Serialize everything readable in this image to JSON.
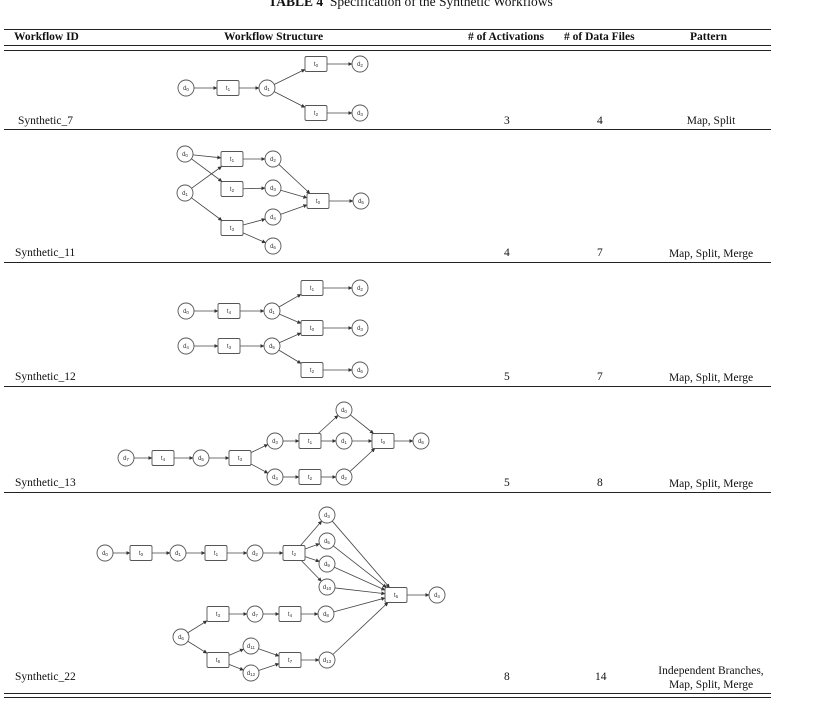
{
  "title": {
    "label": "TABLE 4",
    "text": "Specification of the Synthetic Workflows"
  },
  "headers": {
    "id": "Workflow ID",
    "structure": "Workflow Structure",
    "activations": "# of Activations",
    "files": "# of Data Files",
    "pattern": "Pattern"
  },
  "rows": [
    {
      "id": "Synthetic_7",
      "activations": "3",
      "files": "4",
      "pattern_lines": [
        "Map, Split"
      ]
    },
    {
      "id": "Synthetic_11",
      "activations": "4",
      "files": "7",
      "pattern_lines": [
        "Map, Split, Merge"
      ]
    },
    {
      "id": "Synthetic_12",
      "activations": "5",
      "files": "7",
      "pattern_lines": [
        "Map, Split, Merge"
      ]
    },
    {
      "id": "Synthetic_13",
      "activations": "5",
      "files": "8",
      "pattern_lines": [
        "Map, Split, Merge"
      ]
    },
    {
      "id": "Synthetic_22",
      "activations": "8",
      "files": "14",
      "pattern_lines": [
        "Independent Branches,",
        "Map, Split, Merge"
      ]
    }
  ],
  "diagrams": [
    {
      "nodes": [
        {
          "id": "a",
          "label": "d0",
          "kind": "circle"
        },
        {
          "id": "b",
          "label": "t1",
          "kind": "rect"
        },
        {
          "id": "c",
          "label": "d1",
          "kind": "circle"
        },
        {
          "id": "d",
          "label": "t0",
          "kind": "rect"
        },
        {
          "id": "e",
          "label": "d2",
          "kind": "circle"
        },
        {
          "id": "f",
          "label": "t2",
          "kind": "rect"
        },
        {
          "id": "g",
          "label": "d3",
          "kind": "circle"
        }
      ],
      "edges": [
        [
          "a",
          "b"
        ],
        [
          "b",
          "c"
        ],
        [
          "c",
          "d"
        ],
        [
          "d",
          "e"
        ],
        [
          "c",
          "f"
        ],
        [
          "f",
          "g"
        ]
      ]
    },
    {
      "nodes": [
        {
          "id": "a",
          "label": "d0",
          "kind": "circle"
        },
        {
          "id": "b",
          "label": "d1",
          "kind": "circle"
        },
        {
          "id": "c",
          "label": "t1",
          "kind": "rect"
        },
        {
          "id": "d",
          "label": "t2",
          "kind": "rect"
        },
        {
          "id": "e",
          "label": "t3",
          "kind": "rect"
        },
        {
          "id": "f",
          "label": "d2",
          "kind": "circle"
        },
        {
          "id": "g",
          "label": "d3",
          "kind": "circle"
        },
        {
          "id": "h",
          "label": "d4",
          "kind": "circle"
        },
        {
          "id": "i",
          "label": "d6",
          "kind": "circle"
        },
        {
          "id": "j",
          "label": "t0",
          "kind": "rect"
        },
        {
          "id": "k",
          "label": "d5",
          "kind": "circle"
        }
      ],
      "edges": [
        [
          "a",
          "c"
        ],
        [
          "a",
          "d"
        ],
        [
          "b",
          "c"
        ],
        [
          "b",
          "e"
        ],
        [
          "c",
          "f"
        ],
        [
          "d",
          "g"
        ],
        [
          "e",
          "h"
        ],
        [
          "e",
          "i"
        ],
        [
          "f",
          "j"
        ],
        [
          "g",
          "j"
        ],
        [
          "h",
          "j"
        ],
        [
          "j",
          "k"
        ]
      ]
    },
    {
      "nodes": [
        {
          "id": "a",
          "label": "d0",
          "kind": "circle"
        },
        {
          "id": "b",
          "label": "t4",
          "kind": "rect"
        },
        {
          "id": "c",
          "label": "d1",
          "kind": "circle"
        },
        {
          "id": "d",
          "label": "d4",
          "kind": "circle"
        },
        {
          "id": "e",
          "label": "t3",
          "kind": "rect"
        },
        {
          "id": "f",
          "label": "d5",
          "kind": "circle"
        },
        {
          "id": "g",
          "label": "t1",
          "kind": "rect"
        },
        {
          "id": "h",
          "label": "t0",
          "kind": "rect"
        },
        {
          "id": "i",
          "label": "t2",
          "kind": "rect"
        },
        {
          "id": "j",
          "label": "d2",
          "kind": "circle"
        },
        {
          "id": "k",
          "label": "d3",
          "kind": "circle"
        },
        {
          "id": "l",
          "label": "d6",
          "kind": "circle"
        }
      ],
      "edges": [
        [
          "a",
          "b"
        ],
        [
          "b",
          "c"
        ],
        [
          "d",
          "e"
        ],
        [
          "e",
          "f"
        ],
        [
          "c",
          "g"
        ],
        [
          "c",
          "h"
        ],
        [
          "f",
          "h"
        ],
        [
          "f",
          "i"
        ],
        [
          "g",
          "j"
        ],
        [
          "h",
          "k"
        ],
        [
          "i",
          "l"
        ]
      ]
    },
    {
      "nodes": [
        {
          "id": "a",
          "label": "d7",
          "kind": "circle"
        },
        {
          "id": "b",
          "label": "t4",
          "kind": "rect"
        },
        {
          "id": "c",
          "label": "d5",
          "kind": "circle"
        },
        {
          "id": "d",
          "label": "t3",
          "kind": "rect"
        },
        {
          "id": "e",
          "label": "d3",
          "kind": "circle"
        },
        {
          "id": "f",
          "label": "d4",
          "kind": "circle"
        },
        {
          "id": "g",
          "label": "t1",
          "kind": "rect"
        },
        {
          "id": "h",
          "label": "t2",
          "kind": "rect"
        },
        {
          "id": "i",
          "label": "d0",
          "kind": "circle"
        },
        {
          "id": "j",
          "label": "d1",
          "kind": "circle"
        },
        {
          "id": "k",
          "label": "d2",
          "kind": "circle"
        },
        {
          "id": "l",
          "label": "t0",
          "kind": "rect"
        },
        {
          "id": "m",
          "label": "d6",
          "kind": "circle"
        }
      ],
      "edges": [
        [
          "a",
          "b"
        ],
        [
          "b",
          "c"
        ],
        [
          "c",
          "d"
        ],
        [
          "d",
          "e"
        ],
        [
          "d",
          "f"
        ],
        [
          "e",
          "g"
        ],
        [
          "f",
          "h"
        ],
        [
          "g",
          "i"
        ],
        [
          "g",
          "j"
        ],
        [
          "h",
          "k"
        ],
        [
          "i",
          "l"
        ],
        [
          "j",
          "l"
        ],
        [
          "k",
          "l"
        ],
        [
          "l",
          "m"
        ]
      ]
    },
    {
      "nodes": [
        {
          "id": "a",
          "label": "d0",
          "kind": "circle"
        },
        {
          "id": "b",
          "label": "t0",
          "kind": "rect"
        },
        {
          "id": "c",
          "label": "d1",
          "kind": "circle"
        },
        {
          "id": "d",
          "label": "t1",
          "kind": "rect"
        },
        {
          "id": "e",
          "label": "d2",
          "kind": "circle"
        },
        {
          "id": "f",
          "label": "t2",
          "kind": "rect"
        },
        {
          "id": "g",
          "label": "d3",
          "kind": "circle"
        },
        {
          "id": "h",
          "label": "d5",
          "kind": "circle"
        },
        {
          "id": "i",
          "label": "d9",
          "kind": "circle"
        },
        {
          "id": "j",
          "label": "d10",
          "kind": "circle"
        },
        {
          "id": "k",
          "label": "t6",
          "kind": "rect"
        },
        {
          "id": "l",
          "label": "d4",
          "kind": "circle"
        },
        {
          "id": "m",
          "label": "d6",
          "kind": "circle"
        },
        {
          "id": "n",
          "label": "t3",
          "kind": "rect"
        },
        {
          "id": "o",
          "label": "d7",
          "kind": "circle"
        },
        {
          "id": "p",
          "label": "t4",
          "kind": "rect"
        },
        {
          "id": "q",
          "label": "d8",
          "kind": "circle"
        },
        {
          "id": "r",
          "label": "t5",
          "kind": "rect"
        },
        {
          "id": "s",
          "label": "d11",
          "kind": "circle"
        },
        {
          "id": "t",
          "label": "d12",
          "kind": "circle"
        },
        {
          "id": "u",
          "label": "t7",
          "kind": "rect"
        },
        {
          "id": "v",
          "label": "d13",
          "kind": "circle"
        }
      ],
      "edges": [
        [
          "a",
          "b"
        ],
        [
          "b",
          "c"
        ],
        [
          "c",
          "d"
        ],
        [
          "d",
          "e"
        ],
        [
          "e",
          "f"
        ],
        [
          "f",
          "g"
        ],
        [
          "f",
          "h"
        ],
        [
          "f",
          "i"
        ],
        [
          "f",
          "j"
        ],
        [
          "g",
          "k"
        ],
        [
          "h",
          "k"
        ],
        [
          "i",
          "k"
        ],
        [
          "j",
          "k"
        ],
        [
          "k",
          "l"
        ],
        [
          "m",
          "n"
        ],
        [
          "m",
          "r"
        ],
        [
          "n",
          "o"
        ],
        [
          "o",
          "p"
        ],
        [
          "p",
          "q"
        ],
        [
          "q",
          "k"
        ],
        [
          "r",
          "s"
        ],
        [
          "r",
          "t"
        ],
        [
          "s",
          "u"
        ],
        [
          "t",
          "u"
        ],
        [
          "u",
          "v"
        ],
        [
          "v",
          "k"
        ]
      ]
    }
  ]
}
